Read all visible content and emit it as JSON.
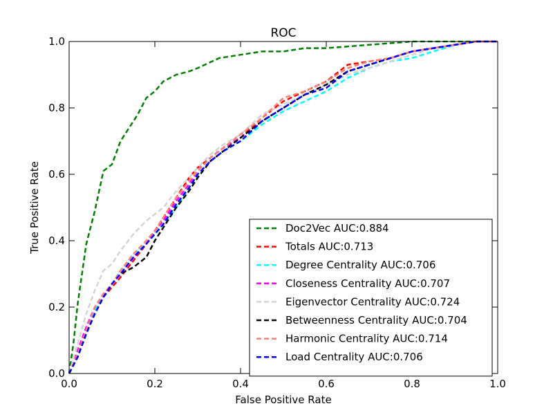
{
  "chart_data": {
    "type": "line",
    "title": "ROC",
    "xlabel": "False Positive Rate",
    "ylabel": "True Positive Rate",
    "xlim": [
      0.0,
      1.0
    ],
    "ylim": [
      0.0,
      1.0
    ],
    "xticks": [
      "0.0",
      "0.2",
      "0.4",
      "0.6",
      "0.8",
      "1.0"
    ],
    "yticks": [
      "0.0",
      "0.2",
      "0.4",
      "0.6",
      "0.8",
      "1.0"
    ],
    "grid": false,
    "legend_position": "lower-right",
    "line_style": "dashed",
    "series": [
      {
        "name": "Doc2Vec AUC:0.884",
        "color": "#008000",
        "x": [
          0,
          0.01,
          0.02,
          0.03,
          0.04,
          0.05,
          0.06,
          0.07,
          0.08,
          0.1,
          0.12,
          0.14,
          0.16,
          0.18,
          0.2,
          0.22,
          0.25,
          0.28,
          0.3,
          0.35,
          0.4,
          0.45,
          0.5,
          0.55,
          0.6,
          0.7,
          0.8,
          0.9,
          1.0
        ],
        "y": [
          0,
          0.09,
          0.21,
          0.3,
          0.39,
          0.44,
          0.49,
          0.55,
          0.61,
          0.63,
          0.7,
          0.74,
          0.78,
          0.83,
          0.85,
          0.88,
          0.9,
          0.91,
          0.92,
          0.95,
          0.96,
          0.97,
          0.97,
          0.98,
          0.98,
          0.99,
          1.0,
          1.0,
          1.0
        ]
      },
      {
        "name": "Totals AUC:0.713",
        "color": "#ff0000",
        "x": [
          0,
          0.02,
          0.04,
          0.06,
          0.08,
          0.1,
          0.12,
          0.15,
          0.18,
          0.2,
          0.22,
          0.25,
          0.28,
          0.3,
          0.33,
          0.36,
          0.4,
          0.45,
          0.5,
          0.55,
          0.6,
          0.65,
          0.7,
          0.75,
          0.8,
          0.85,
          0.9,
          0.95,
          1.0
        ],
        "y": [
          0,
          0.06,
          0.13,
          0.19,
          0.23,
          0.26,
          0.29,
          0.34,
          0.39,
          0.43,
          0.47,
          0.53,
          0.59,
          0.62,
          0.65,
          0.68,
          0.71,
          0.77,
          0.82,
          0.85,
          0.88,
          0.93,
          0.94,
          0.95,
          0.97,
          0.98,
          0.99,
          1.0,
          1.0
        ]
      },
      {
        "name": "Degree Centrality AUC:0.706",
        "color": "#00ffff",
        "x": [
          0,
          0.02,
          0.04,
          0.06,
          0.08,
          0.1,
          0.12,
          0.15,
          0.18,
          0.2,
          0.22,
          0.25,
          0.28,
          0.3,
          0.33,
          0.36,
          0.4,
          0.45,
          0.5,
          0.55,
          0.6,
          0.65,
          0.7,
          0.75,
          0.8,
          0.85,
          0.9,
          0.95,
          1.0
        ],
        "y": [
          0,
          0.06,
          0.13,
          0.19,
          0.23,
          0.27,
          0.31,
          0.36,
          0.39,
          0.42,
          0.45,
          0.5,
          0.56,
          0.6,
          0.64,
          0.67,
          0.7,
          0.75,
          0.79,
          0.82,
          0.85,
          0.89,
          0.92,
          0.94,
          0.95,
          0.97,
          0.99,
          1.0,
          1.0
        ]
      },
      {
        "name": "Closeness Centrality AUC:0.707",
        "color": "#ff00ff",
        "x": [
          0,
          0.02,
          0.04,
          0.06,
          0.08,
          0.1,
          0.12,
          0.15,
          0.18,
          0.2,
          0.22,
          0.25,
          0.28,
          0.3,
          0.33,
          0.36,
          0.4,
          0.45,
          0.5,
          0.55,
          0.6,
          0.65,
          0.7,
          0.75,
          0.8,
          0.85,
          0.9,
          0.95,
          1.0
        ],
        "y": [
          0,
          0.07,
          0.14,
          0.2,
          0.24,
          0.27,
          0.3,
          0.35,
          0.39,
          0.43,
          0.46,
          0.52,
          0.57,
          0.61,
          0.65,
          0.68,
          0.71,
          0.76,
          0.8,
          0.84,
          0.87,
          0.91,
          0.93,
          0.95,
          0.97,
          0.98,
          0.99,
          1.0,
          1.0
        ]
      },
      {
        "name": "Eigenvector Centrality AUC:0.724",
        "color": "#d3d3d3",
        "x": [
          0,
          0.02,
          0.04,
          0.06,
          0.08,
          0.1,
          0.12,
          0.15,
          0.18,
          0.2,
          0.22,
          0.25,
          0.28,
          0.3,
          0.33,
          0.36,
          0.4,
          0.45,
          0.5,
          0.55,
          0.6,
          0.65,
          0.7,
          0.75,
          0.8,
          0.85,
          0.9,
          0.95,
          1.0
        ],
        "y": [
          0,
          0.09,
          0.18,
          0.25,
          0.31,
          0.33,
          0.37,
          0.42,
          0.46,
          0.48,
          0.5,
          0.55,
          0.59,
          0.62,
          0.66,
          0.69,
          0.72,
          0.78,
          0.81,
          0.84,
          0.87,
          0.9,
          0.92,
          0.94,
          0.96,
          0.98,
          0.99,
          1.0,
          1.0
        ]
      },
      {
        "name": "Betweenness Centrality AUC:0.704",
        "color": "#000000",
        "x": [
          0,
          0.02,
          0.04,
          0.06,
          0.08,
          0.1,
          0.12,
          0.15,
          0.18,
          0.2,
          0.22,
          0.25,
          0.28,
          0.3,
          0.33,
          0.36,
          0.4,
          0.45,
          0.5,
          0.55,
          0.6,
          0.65,
          0.7,
          0.75,
          0.8,
          0.85,
          0.9,
          0.95,
          1.0
        ],
        "y": [
          0,
          0.05,
          0.12,
          0.18,
          0.23,
          0.27,
          0.3,
          0.32,
          0.35,
          0.4,
          0.44,
          0.5,
          0.55,
          0.59,
          0.64,
          0.67,
          0.71,
          0.76,
          0.8,
          0.84,
          0.87,
          0.91,
          0.93,
          0.95,
          0.97,
          0.98,
          0.99,
          1.0,
          1.0
        ]
      },
      {
        "name": "Harmonic Centrality AUC:0.714",
        "color": "#fa8072",
        "x": [
          0,
          0.02,
          0.04,
          0.06,
          0.08,
          0.1,
          0.12,
          0.15,
          0.18,
          0.2,
          0.22,
          0.25,
          0.28,
          0.3,
          0.33,
          0.36,
          0.4,
          0.45,
          0.5,
          0.55,
          0.6,
          0.65,
          0.7,
          0.75,
          0.8,
          0.85,
          0.9,
          0.95,
          1.0
        ],
        "y": [
          0,
          0.06,
          0.13,
          0.2,
          0.24,
          0.27,
          0.31,
          0.36,
          0.4,
          0.43,
          0.47,
          0.53,
          0.58,
          0.61,
          0.65,
          0.68,
          0.72,
          0.77,
          0.83,
          0.85,
          0.88,
          0.92,
          0.94,
          0.95,
          0.97,
          0.98,
          0.99,
          1.0,
          1.0
        ]
      },
      {
        "name": "Load Centrality AUC:0.706",
        "color": "#0000ff",
        "x": [
          0,
          0.02,
          0.04,
          0.06,
          0.08,
          0.1,
          0.12,
          0.15,
          0.18,
          0.2,
          0.22,
          0.25,
          0.28,
          0.3,
          0.33,
          0.36,
          0.4,
          0.45,
          0.5,
          0.55,
          0.6,
          0.65,
          0.7,
          0.75,
          0.8,
          0.85,
          0.9,
          0.95,
          1.0
        ],
        "y": [
          0,
          0.05,
          0.12,
          0.18,
          0.23,
          0.27,
          0.3,
          0.35,
          0.39,
          0.42,
          0.45,
          0.51,
          0.56,
          0.6,
          0.64,
          0.67,
          0.7,
          0.76,
          0.8,
          0.84,
          0.86,
          0.91,
          0.93,
          0.95,
          0.97,
          0.98,
          0.99,
          1.0,
          1.0
        ]
      }
    ]
  }
}
